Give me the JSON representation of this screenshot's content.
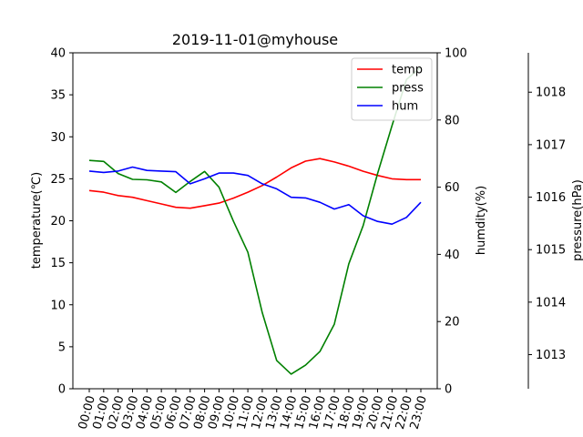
{
  "chart_data": {
    "type": "line",
    "title": "2019-11-01@myhouse",
    "x": [
      "00:00",
      "01:00",
      "02:00",
      "03:00",
      "04:00",
      "05:00",
      "06:00",
      "07:00",
      "08:00",
      "09:00",
      "10:00",
      "11:00",
      "12:00",
      "13:00",
      "14:00",
      "15:00",
      "16:00",
      "17:00",
      "18:00",
      "19:00",
      "20:00",
      "21:00",
      "22:00",
      "23:00"
    ],
    "axes": {
      "left": {
        "label": "temperature(℃)",
        "ylim": [
          0,
          40
        ],
        "ticks": [
          0,
          5,
          10,
          15,
          20,
          25,
          30,
          35,
          40
        ]
      },
      "right1": {
        "label": "humdity(%)",
        "ylim": [
          0,
          100
        ],
        "ticks": [
          0,
          20,
          40,
          60,
          80,
          100
        ]
      },
      "right2": {
        "label": "pressure(hPa)",
        "ylim": [
          1012.35,
          1018.75
        ],
        "ticks": [
          1013,
          1014,
          1015,
          1016,
          1017,
          1018
        ]
      }
    },
    "series": [
      {
        "name": "temp",
        "axis": "left",
        "color": "#ff0000",
        "values": [
          23.6,
          23.4,
          23.0,
          22.8,
          22.4,
          22.0,
          21.6,
          21.5,
          21.8,
          22.1,
          22.7,
          23.4,
          24.2,
          25.2,
          26.3,
          27.1,
          27.4,
          27.0,
          26.5,
          25.9,
          25.4,
          25.0,
          24.9,
          24.9
        ]
      },
      {
        "name": "press",
        "axis": "right2",
        "color": "#008000",
        "values": [
          1016.7,
          1016.68,
          1016.45,
          1016.34,
          1016.33,
          1016.29,
          1016.09,
          1016.3,
          1016.49,
          1016.19,
          1015.54,
          1014.95,
          1013.8,
          1012.89,
          1012.63,
          1012.8,
          1013.06,
          1013.58,
          1014.73,
          1015.46,
          1016.45,
          1017.36,
          1018.24,
          1018.48
        ]
      },
      {
        "name": "hum",
        "axis": "right1",
        "color": "#0000ff",
        "values": [
          64.8,
          64.4,
          64.8,
          66.0,
          65.0,
          64.8,
          64.6,
          61.0,
          62.5,
          64.2,
          64.2,
          63.5,
          61.0,
          59.5,
          57.0,
          56.8,
          55.5,
          53.5,
          54.8,
          51.5,
          49.8,
          49.0,
          51.0,
          55.5
        ]
      }
    ],
    "legend": "top-right",
    "grid": false
  }
}
